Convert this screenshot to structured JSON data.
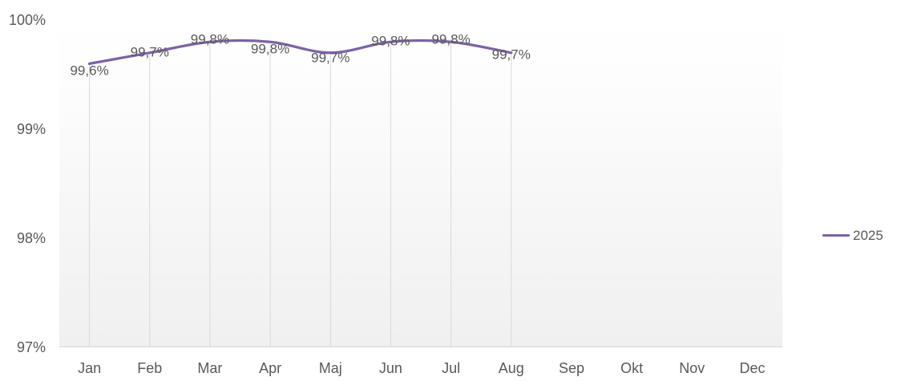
{
  "chart_data": {
    "type": "line",
    "smooth": true,
    "categories": [
      "Jan",
      "Feb",
      "Mar",
      "Apr",
      "Maj",
      "Jun",
      "Jul",
      "Aug",
      "Sep",
      "Okt",
      "Nov",
      "Dec"
    ],
    "yticks": [
      "100%",
      "99%",
      "98%",
      "97%"
    ],
    "ylim": [
      97,
      100
    ],
    "grid": "vertical-droplines-at-data-points",
    "legend_position": "right",
    "series": [
      {
        "name": "2025",
        "color": "#7D62A7",
        "values": [
          99.6,
          99.7,
          99.8,
          99.8,
          99.7,
          99.8,
          99.8,
          99.7
        ],
        "data_labels": [
          "99,6%",
          "99,7%",
          "99,8%",
          "99,8%",
          "99,7%",
          "99,8%",
          "99,8%",
          "99,7%"
        ]
      }
    ]
  },
  "colors": {
    "text": "#595959",
    "dropline": "#D9D9D9",
    "axis_line": "#D6D6D6",
    "plot_bg_top": "#FFFFFF",
    "plot_bg_bottom": "#F0F0F0"
  }
}
